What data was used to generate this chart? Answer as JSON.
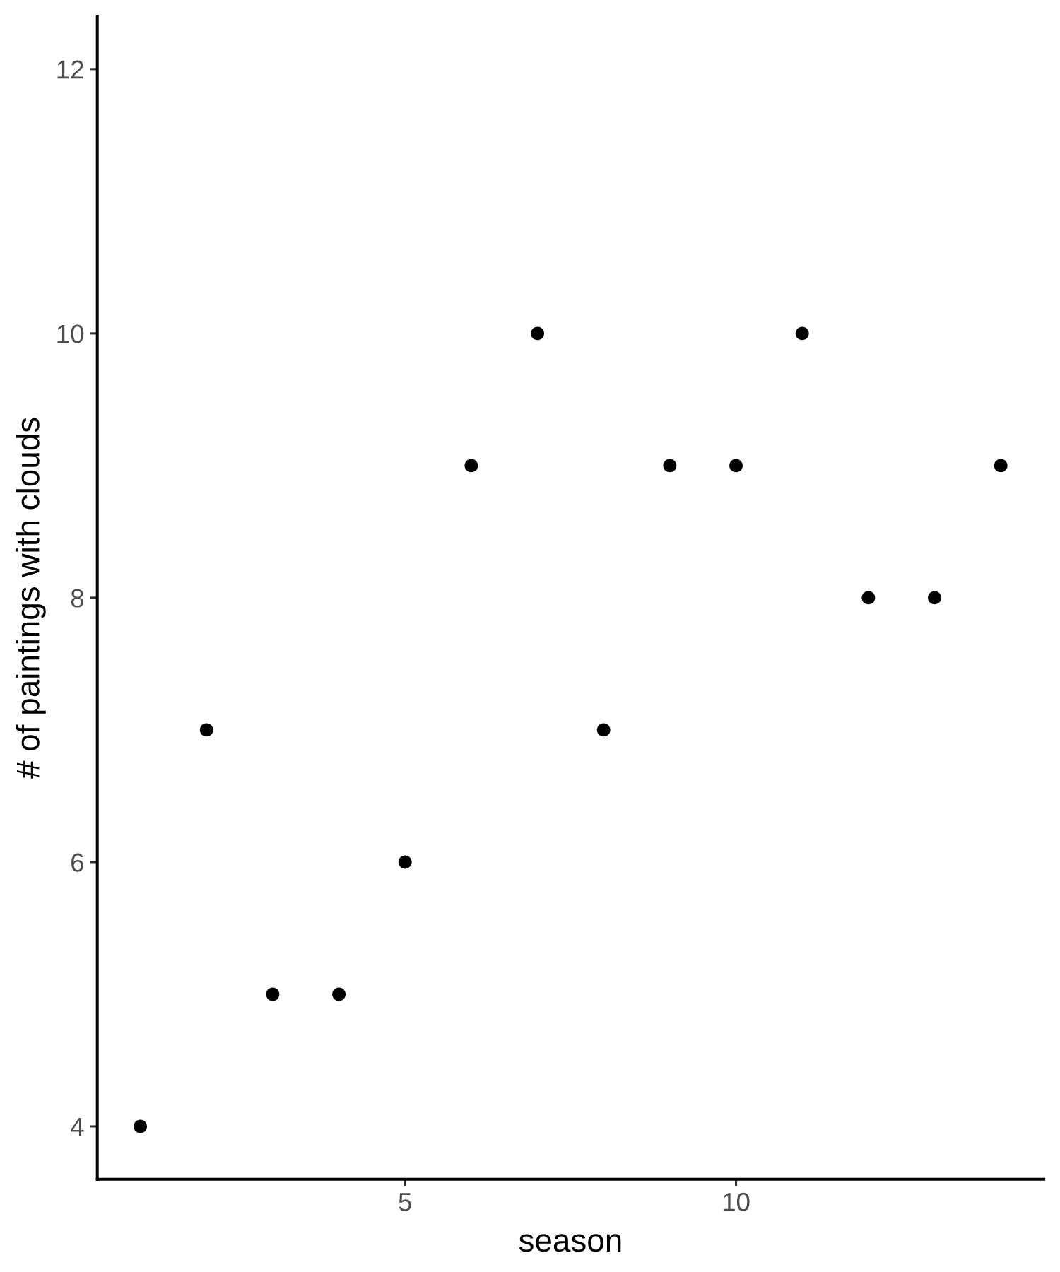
{
  "chart_data": {
    "type": "scatter",
    "xlabel": "season",
    "ylabel": "# of paintings with clouds",
    "x": [
      1,
      2,
      3,
      4,
      5,
      6,
      7,
      8,
      9,
      10,
      11,
      12,
      13,
      14
    ],
    "series": [
      {
        "color": "#000000",
        "values": [
          4,
          7,
          5,
          5,
          6,
          9,
          10,
          7,
          9,
          9,
          10,
          8,
          8,
          9
        ]
      }
    ],
    "xlim": [
      0.35,
      14.65
    ],
    "xticks": [
      5,
      10
    ],
    "ylim": [
      3.6,
      12.4
    ],
    "yticks": [
      4,
      6,
      8,
      10,
      12
    ],
    "grid": false,
    "marker": "circle"
  }
}
